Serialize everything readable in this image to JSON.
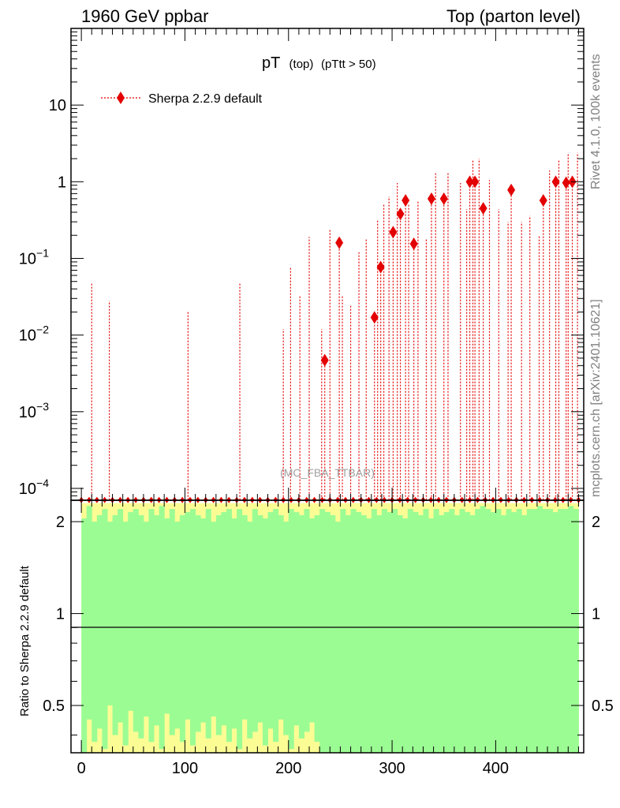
{
  "header": {
    "left": "1960 GeV ppbar",
    "right": "Top (parton level)"
  },
  "plot_title": {
    "main": "pT",
    "sub1": "(top)",
    "sub2": "(pTtt > 50)"
  },
  "legend": {
    "label": "Sherpa 2.2.9 default"
  },
  "side_labels": {
    "rivet": "Rivet 4.1.0,  100k events",
    "mcplots": "mcplots.cern.ch [arXiv:2401.10621]"
  },
  "watermark": "(MC_FBA_TTBAR)",
  "ratio_ylabel": "Ratio to Sherpa 2.2.9 default",
  "upper_ticks": [
    {
      "value": 10,
      "label": "10",
      "exp": ""
    },
    {
      "value": 1,
      "label": "1",
      "exp": ""
    },
    {
      "value": 0.1,
      "label": "10",
      "exp": "−1"
    },
    {
      "value": 0.01,
      "label": "10",
      "exp": "−2"
    },
    {
      "value": 0.001,
      "label": "10",
      "exp": "−3"
    },
    {
      "value": 0.0001,
      "label": "10",
      "exp": "−4"
    }
  ],
  "ratio_ticks": [
    {
      "value": 2,
      "label": "2"
    },
    {
      "value": 1,
      "label": "1"
    },
    {
      "value": 0.5,
      "label": "0.5"
    }
  ],
  "x_ticks": [
    {
      "value": 0,
      "label": "0"
    },
    {
      "value": 100,
      "label": "100"
    },
    {
      "value": 200,
      "label": "200"
    },
    {
      "value": 300,
      "label": "300"
    },
    {
      "value": 400,
      "label": "400"
    }
  ],
  "colors": {
    "series": "#e30000",
    "band_inner": "#9cfc94",
    "band_outer": "#fcfc94",
    "axis": "#000000",
    "side_text": "#808080"
  },
  "chart_data": {
    "type": "line",
    "xlabel": "",
    "ylabel": "",
    "xlim": [
      -10,
      485
    ],
    "ylim": [
      7e-05,
      100
    ],
    "ylog": true,
    "ratio_ylim": [
      0.35,
      2.35
    ],
    "series": [
      {
        "name": "Sherpa 2.2.9 default",
        "points": [
          {
            "x": 235,
            "y": 0.0047
          },
          {
            "x": 249,
            "y": 0.16
          },
          {
            "x": 283,
            "y": 0.017
          },
          {
            "x": 289,
            "y": 0.077
          },
          {
            "x": 301,
            "y": 0.22
          },
          {
            "x": 308,
            "y": 0.38
          },
          {
            "x": 313,
            "y": 0.57
          },
          {
            "x": 321,
            "y": 0.155
          },
          {
            "x": 338,
            "y": 0.6
          },
          {
            "x": 350,
            "y": 0.6
          },
          {
            "x": 375,
            "y": 1.0
          },
          {
            "x": 380,
            "y": 1.0
          },
          {
            "x": 388,
            "y": 0.45
          },
          {
            "x": 415,
            "y": 0.78
          },
          {
            "x": 446,
            "y": 0.57
          },
          {
            "x": 458,
            "y": 1.0
          },
          {
            "x": 468,
            "y": 0.97
          },
          {
            "x": 474,
            "y": 1.0
          }
        ],
        "spikes": [
          {
            "x": 10,
            "y": 0.047
          },
          {
            "x": 27,
            "y": 0.028
          },
          {
            "x": 103,
            "y": 0.02
          },
          {
            "x": 153,
            "y": 0.048
          },
          {
            "x": 195,
            "y": 0.012
          },
          {
            "x": 202,
            "y": 0.077
          },
          {
            "x": 211,
            "y": 0.032
          },
          {
            "x": 220,
            "y": 0.19
          },
          {
            "x": 232,
            "y": 0.012
          },
          {
            "x": 240,
            "y": 0.24
          },
          {
            "x": 252,
            "y": 0.032
          },
          {
            "x": 260,
            "y": 0.025
          },
          {
            "x": 268,
            "y": 0.12
          },
          {
            "x": 275,
            "y": 0.18
          },
          {
            "x": 286,
            "y": 0.31
          },
          {
            "x": 292,
            "y": 0.52
          },
          {
            "x": 297,
            "y": 0.64
          },
          {
            "x": 305,
            "y": 0.96
          },
          {
            "x": 316,
            "y": 0.52
          },
          {
            "x": 325,
            "y": 0.55
          },
          {
            "x": 333,
            "y": 0.18
          },
          {
            "x": 342,
            "y": 1.3
          },
          {
            "x": 354,
            "y": 1.3
          },
          {
            "x": 366,
            "y": 0.96
          },
          {
            "x": 372,
            "y": 0.44
          },
          {
            "x": 378,
            "y": 1.9
          },
          {
            "x": 384,
            "y": 2.0
          },
          {
            "x": 394,
            "y": 1.05
          },
          {
            "x": 403,
            "y": 0.44
          },
          {
            "x": 412,
            "y": 0.3
          },
          {
            "x": 425,
            "y": 0.3
          },
          {
            "x": 433,
            "y": 0.36
          },
          {
            "x": 442,
            "y": 0.2
          },
          {
            "x": 452,
            "y": 1.4
          },
          {
            "x": 461,
            "y": 1.9
          },
          {
            "x": 470,
            "y": 2.3
          },
          {
            "x": 479,
            "y": 2.4
          }
        ]
      }
    ],
    "ratio_band": {
      "bin_width": 5,
      "x_start": 0,
      "inner_upper": [
        2.05,
        2.25,
        2.0,
        2.1,
        2.2,
        2.0,
        2.1,
        2.2,
        2.0,
        2.15,
        2.2,
        2.1,
        2.0,
        2.2,
        2.1,
        2.25,
        2.05,
        2.2,
        2.0,
        2.1,
        2.15,
        2.2,
        2.1,
        2.05,
        2.2,
        2.0,
        2.1,
        2.15,
        2.2,
        2.05,
        2.2,
        2.1,
        2.0,
        2.2,
        2.1,
        2.05,
        2.15,
        2.2,
        2.1,
        2.0,
        2.2,
        2.15,
        2.1,
        2.2,
        2.05,
        2.1,
        2.2,
        2.15,
        2.1,
        2.0,
        2.2,
        2.1,
        2.2,
        2.15,
        2.1,
        2.05,
        2.2,
        2.1,
        2.2,
        2.15,
        2.2,
        2.1,
        2.05,
        2.2,
        2.15,
        2.1,
        2.2,
        2.05,
        2.2,
        2.1,
        2.15,
        2.2,
        2.1,
        2.2,
        2.15,
        2.1,
        2.2,
        2.25,
        2.2,
        2.15,
        2.2,
        2.1,
        2.2,
        2.15,
        2.2,
        2.1,
        2.2,
        2.2,
        2.25,
        2.2,
        2.2,
        2.15,
        2.2,
        2.2,
        2.25,
        2.2
      ],
      "outer_upper": [
        2.3,
        2.3,
        2.3,
        2.3,
        2.3,
        2.3,
        2.3,
        2.3,
        2.3,
        2.3,
        2.3,
        2.3,
        2.3,
        2.3,
        2.3,
        2.3,
        2.3,
        2.3,
        2.3,
        2.3,
        2.3,
        2.3,
        2.3,
        2.3,
        2.3,
        2.3,
        2.3,
        2.3,
        2.3,
        2.3,
        2.3,
        2.3,
        2.3,
        2.3,
        2.3,
        2.3,
        2.3,
        2.3,
        2.3,
        2.3,
        2.3,
        2.3,
        2.3,
        2.3,
        2.3,
        2.3,
        2.3,
        2.3,
        2.3,
        2.3,
        2.3,
        2.3,
        2.3,
        2.3,
        2.3,
        2.3,
        2.3,
        2.3,
        2.3,
        2.3,
        2.3,
        2.3,
        2.3,
        2.3,
        2.3,
        2.3,
        2.3,
        2.3,
        2.3,
        2.3,
        2.3,
        2.3,
        2.3,
        2.3,
        2.3,
        2.3,
        2.3,
        2.3,
        2.3,
        2.3,
        2.3,
        2.3,
        2.3,
        2.3,
        2.3,
        2.3,
        2.3,
        2.3,
        2.3,
        2.3,
        2.3,
        2.3,
        2.3,
        2.3,
        2.3,
        2.3
      ],
      "inner_lower": [
        0.35,
        0.45,
        0.38,
        0.42,
        0.36,
        0.5,
        0.4,
        0.44,
        0.37,
        0.48,
        0.41,
        0.39,
        0.46,
        0.38,
        0.43,
        0.36,
        0.47,
        0.4,
        0.42,
        0.38,
        0.45,
        0.37,
        0.41,
        0.44,
        0.39,
        0.46,
        0.4,
        0.43,
        0.38,
        0.42,
        0.36,
        0.45,
        0.39,
        0.41,
        0.44,
        0.37,
        0.42,
        0.38,
        0.45,
        0.4,
        0.36,
        0.43,
        0.39,
        0.41,
        0.44,
        0.38,
        0.35,
        0.35,
        0.35,
        0.35,
        0.35,
        0.35,
        0.35,
        0.35,
        0.35,
        0.35,
        0.35,
        0.35,
        0.35,
        0.35,
        0.35,
        0.35,
        0.35,
        0.35,
        0.35,
        0.35,
        0.35,
        0.35,
        0.35,
        0.35,
        0.35,
        0.35,
        0.35,
        0.35,
        0.35,
        0.35,
        0.35,
        0.35,
        0.35,
        0.35,
        0.35,
        0.35,
        0.35,
        0.35,
        0.35,
        0.35,
        0.35,
        0.35,
        0.35,
        0.35,
        0.35,
        0.35,
        0.35,
        0.35,
        0.35,
        0.35
      ],
      "outer_lower": [
        0.35,
        0.35,
        0.35,
        0.35,
        0.35,
        0.35,
        0.35,
        0.35,
        0.35,
        0.35,
        0.35,
        0.35,
        0.35,
        0.35,
        0.35,
        0.35,
        0.35,
        0.35,
        0.35,
        0.35,
        0.35,
        0.35,
        0.35,
        0.35,
        0.35,
        0.35,
        0.35,
        0.35,
        0.35,
        0.35,
        0.35,
        0.35,
        0.35,
        0.35,
        0.35,
        0.35,
        0.35,
        0.35,
        0.35,
        0.35,
        0.35,
        0.35,
        0.35,
        0.35,
        0.35,
        0.35,
        0.35,
        0.35,
        0.35,
        0.35,
        0.35,
        0.35,
        0.35,
        0.35,
        0.35,
        0.35,
        0.35,
        0.35,
        0.35,
        0.35,
        0.35,
        0.35,
        0.35,
        0.35,
        0.35,
        0.35,
        0.35,
        0.35,
        0.35,
        0.35,
        0.35,
        0.35,
        0.35,
        0.35,
        0.35,
        0.35,
        0.35,
        0.35,
        0.35,
        0.35,
        0.35,
        0.35,
        0.35,
        0.35,
        0.35,
        0.35,
        0.35,
        0.35,
        0.35,
        0.35,
        0.35,
        0.35,
        0.35,
        0.35,
        0.35,
        0.35
      ]
    }
  }
}
